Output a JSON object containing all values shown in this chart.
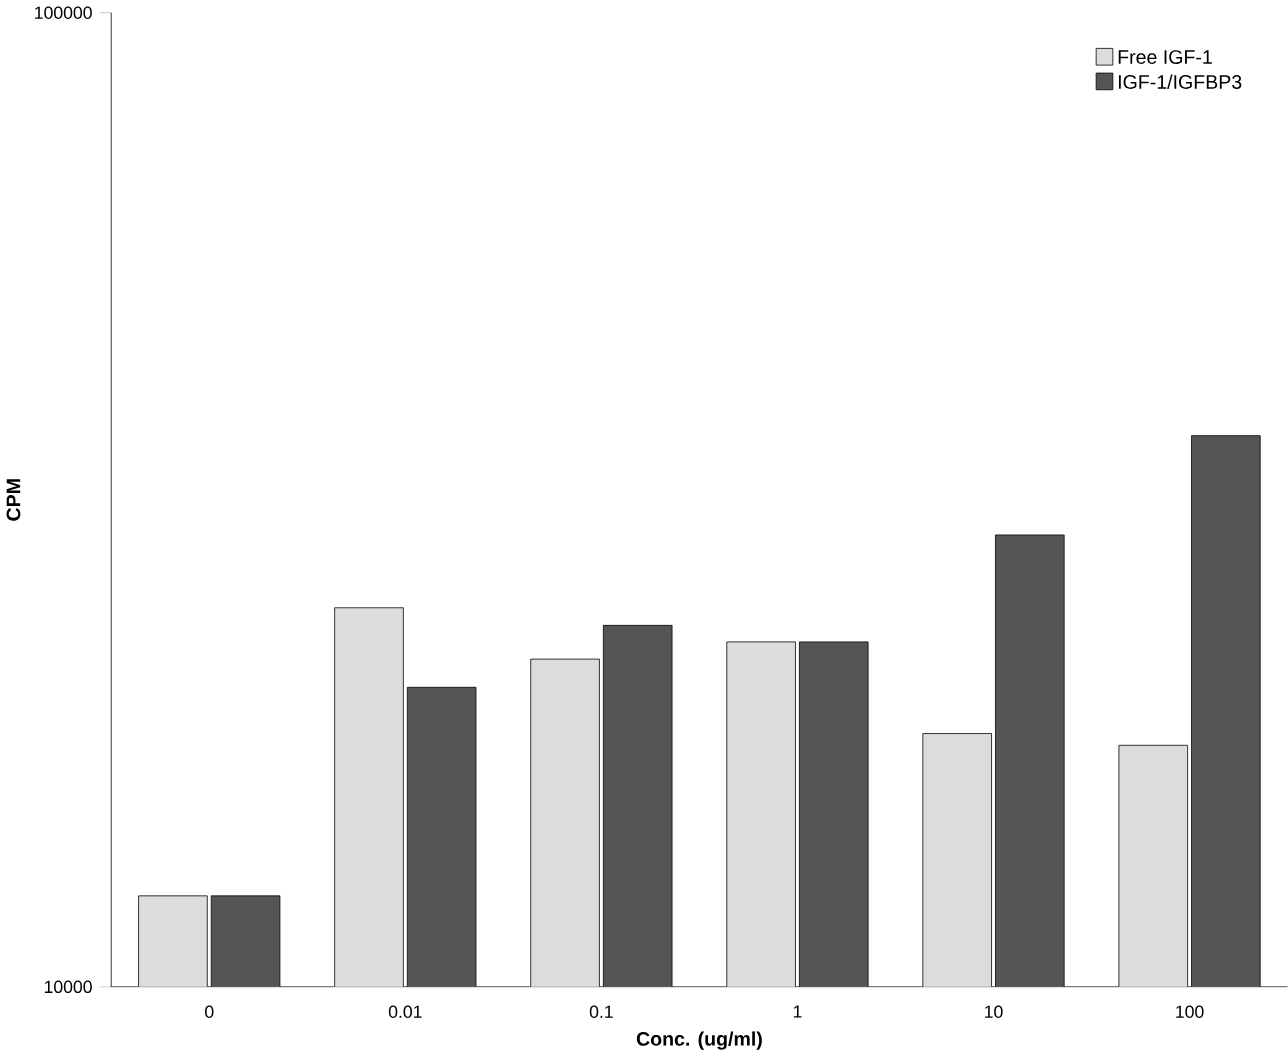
{
  "chart_data": {
    "type": "bar",
    "xlabel": "Conc. (ug/ml)",
    "ylabel": "CPM",
    "categories": [
      "0",
      "0.01",
      "0.1",
      "1",
      "10",
      "100"
    ],
    "series": [
      {
        "name": "Free IGF-1",
        "color": "#dcdcdc",
        "values": [
          12400,
          24500,
          21700,
          22600,
          18200,
          17700
        ]
      },
      {
        "name": "IGF-1/IGFBP3",
        "color": "#555555",
        "values": [
          12400,
          20300,
          23500,
          22600,
          29100,
          36800
        ]
      }
    ],
    "log": "y",
    "ylim": [
      10000,
      100000
    ],
    "yticks": [
      10000,
      100000
    ],
    "legend": "top right",
    "grid": false
  }
}
